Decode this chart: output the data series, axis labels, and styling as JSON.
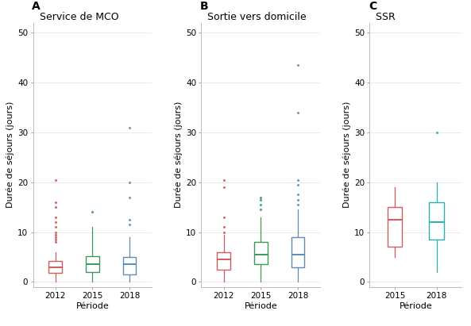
{
  "panels": [
    {
      "label": "A",
      "title": "Service de MCO",
      "xlabel": "Période",
      "ylabel": "Durée de séjours (jours)",
      "ylim": [
        -1,
        52
      ],
      "yticks": [
        0,
        10,
        20,
        30,
        40,
        50
      ],
      "xticks": [
        "2012",
        "2015",
        "2018"
      ],
      "boxes": [
        {
          "year": "2012",
          "color": "#CD5C5C",
          "median": 3.0,
          "q1": 1.8,
          "q3": 4.2,
          "whisker_low": 0.0,
          "whisker_high": 6.0,
          "fliers": [
            8.0,
            8.5,
            9.0,
            9.5,
            10.0,
            11.0,
            12.0,
            13.0,
            15.0,
            16.0,
            20.5
          ]
        },
        {
          "year": "2015",
          "color": "#3A9A5C",
          "median": 3.5,
          "q1": 2.0,
          "q3": 5.2,
          "whisker_low": 0.0,
          "whisker_high": 11.0,
          "fliers": [
            14.0
          ]
        },
        {
          "year": "2018",
          "color": "#5B8DB8",
          "median": 3.5,
          "q1": 1.5,
          "q3": 5.0,
          "whisker_low": 0.0,
          "whisker_high": 9.0,
          "fliers": [
            11.5,
            12.5,
            17.0,
            20.0,
            31.0
          ]
        }
      ]
    },
    {
      "label": "B",
      "title": "Sortie vers domicile",
      "xlabel": "Période",
      "ylabel": "Durée de séjours (jours)",
      "ylim": [
        -1,
        52
      ],
      "yticks": [
        0,
        10,
        20,
        30,
        40,
        50
      ],
      "xticks": [
        "2012",
        "2015",
        "2018"
      ],
      "boxes": [
        {
          "year": "2012",
          "color": "#CD5C5C",
          "median": 4.5,
          "q1": 2.5,
          "q3": 6.0,
          "whisker_low": 0.0,
          "whisker_high": 9.5,
          "fliers": [
            10.0,
            11.0,
            13.0,
            19.0,
            20.5
          ]
        },
        {
          "year": "2015",
          "color": "#3A9A5C",
          "median": 5.5,
          "q1": 3.5,
          "q3": 8.0,
          "whisker_low": 0.0,
          "whisker_high": 13.0,
          "fliers": [
            14.5,
            15.5,
            16.5,
            17.0
          ]
        },
        {
          "year": "2018",
          "color": "#5B8DB8",
          "median": 5.5,
          "q1": 3.0,
          "q3": 9.0,
          "whisker_low": 0.0,
          "whisker_high": 14.5,
          "fliers": [
            15.5,
            16.5,
            17.5,
            19.5,
            20.5,
            34.0,
            43.5
          ]
        }
      ]
    },
    {
      "label": "C",
      "title": "SSR",
      "xlabel": "Période",
      "ylabel": "Durée de séjours (jours)",
      "ylim": [
        -1,
        52
      ],
      "yticks": [
        0,
        10,
        20,
        30,
        40,
        50
      ],
      "xticks": [
        "2015",
        "2018"
      ],
      "boxes": [
        {
          "year": "2015",
          "color": "#CD5C5C",
          "median": 12.5,
          "q1": 7.0,
          "q3": 15.0,
          "whisker_low": 5.0,
          "whisker_high": 19.0,
          "fliers": []
        },
        {
          "year": "2018",
          "color": "#2AAFAF",
          "median": 12.0,
          "q1": 8.5,
          "q3": 16.0,
          "whisker_low": 2.0,
          "whisker_high": 20.0,
          "fliers": [
            30.0
          ]
        }
      ]
    }
  ],
  "background_color": "#FFFFFF",
  "panel_bg": "#FFFFFF",
  "box_width": 0.35,
  "title_fontsize": 9,
  "label_fontsize": 8,
  "tick_fontsize": 7.5,
  "panel_label_fontsize": 10
}
